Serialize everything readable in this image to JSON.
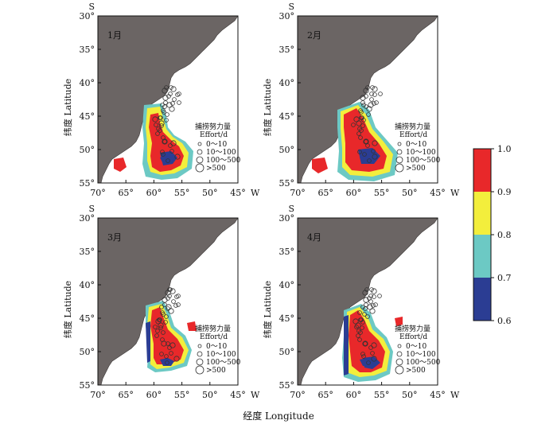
{
  "figure": {
    "x_axis_label": "经度 Longitude",
    "colorbar": {
      "ticks": [
        "1.0",
        "0.9",
        "0.8",
        "0.7",
        "0.6"
      ],
      "colors": [
        "#e8282a",
        "#f3ee3c",
        "#6cc9c4",
        "#2b3d93"
      ]
    },
    "colors": {
      "land": "#6b6564",
      "red": "#e8282a",
      "yellow": "#f3ee3c",
      "cyan": "#6cc9c4",
      "blue": "#2b3d93"
    },
    "panels": [
      {
        "month": "1月",
        "s_label": "S",
        "w_label": "W",
        "x_ticks": [
          "70°",
          "65°",
          "60°",
          "55°",
          "50°",
          "45°"
        ],
        "y_ticks": [
          "30°",
          "35°",
          "40°",
          "45°",
          "50°",
          "55°"
        ],
        "y_axis_title": "纬度 Latitude",
        "legend": {
          "title_cn": "捕捞努力量",
          "title_en": "Effort/d",
          "items": [
            "0～10",
            "10～100",
            "100～500",
            ">500"
          ]
        }
      },
      {
        "month": "2月",
        "s_label": "S",
        "w_label": "W",
        "x_ticks": [
          "70°",
          "65°",
          "60°",
          "55°",
          "50°",
          "45°"
        ],
        "y_ticks": [
          "30°",
          "35°",
          "40°",
          "45°",
          "50°",
          "55°"
        ],
        "y_axis_title": "纬度 Latitude",
        "legend": {
          "title_cn": "捕捞努力量",
          "title_en": "Effort/d",
          "items": [
            "0～10",
            "10～100",
            "100～500",
            ">500"
          ]
        }
      },
      {
        "month": "3月",
        "s_label": "S",
        "w_label": "W",
        "x_ticks": [
          "70°",
          "65°",
          "60°",
          "55°",
          "50°",
          "45°"
        ],
        "y_ticks": [
          "30°",
          "35°",
          "40°",
          "45°",
          "50°",
          "55°"
        ],
        "y_axis_title": "纬度 Latitude",
        "legend": {
          "title_cn": "捕捞努力量",
          "title_en": "Effort/d",
          "items": [
            "0～10",
            "10～100",
            "100～500",
            ">500"
          ]
        }
      },
      {
        "month": "4月",
        "s_label": "S",
        "w_label": "W",
        "x_ticks": [
          "70°",
          "65°",
          "60°",
          "55°",
          "50°",
          "45°"
        ],
        "y_ticks": [
          "30°",
          "35°",
          "40°",
          "45°",
          "50°",
          "55°"
        ],
        "y_axis_title": "纬度 Latitude",
        "legend": {
          "title_cn": "捕捞努力量",
          "title_en": "Effort/d",
          "items": [
            "0～10",
            "10～100",
            "100～500",
            ">500"
          ]
        }
      }
    ]
  }
}
